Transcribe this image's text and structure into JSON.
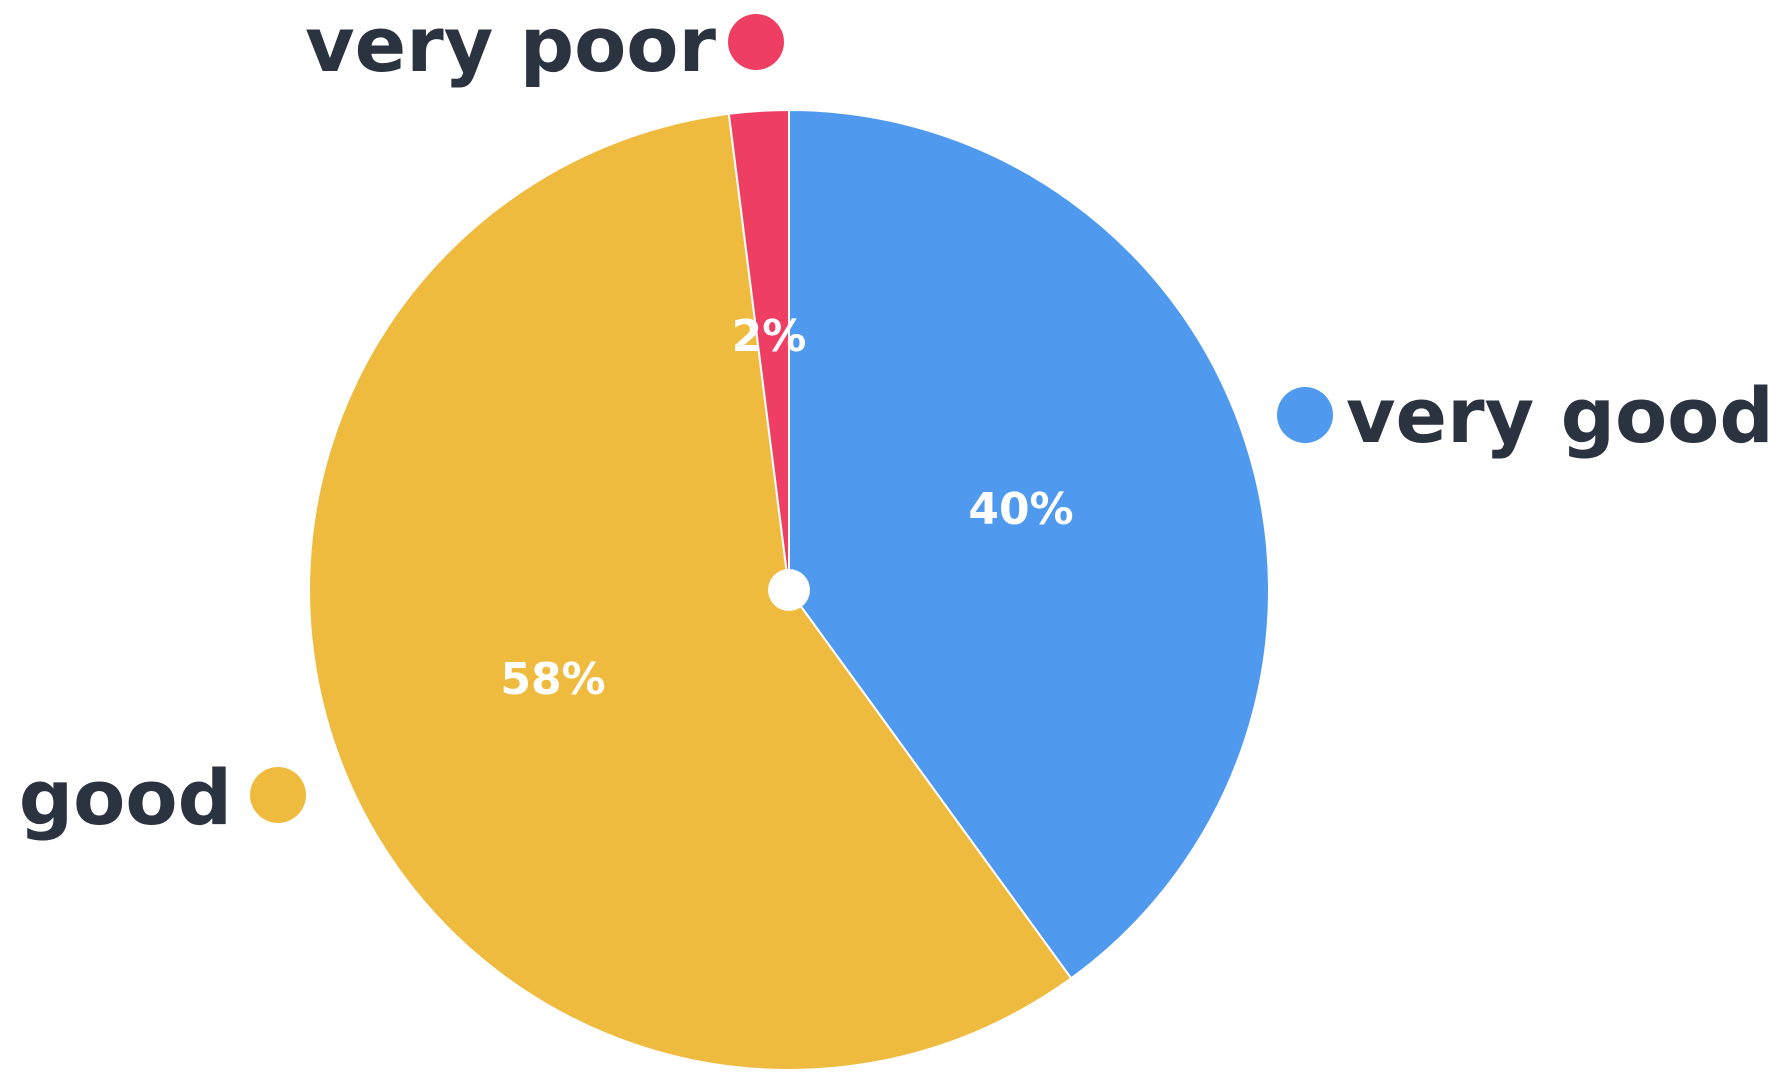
{
  "chart_data": {
    "type": "pie",
    "slices": [
      {
        "name": "very good",
        "value": 40,
        "label": "40%",
        "color": "#4f99ee"
      },
      {
        "name": "good",
        "value": 58,
        "label": "58%",
        "color": "#efbb3f"
      },
      {
        "name": "very poor",
        "value": 2,
        "label": "2%",
        "color": "#ef3e63"
      }
    ],
    "start_angle_deg": 0,
    "direction": "clockwise",
    "legend_placement": "around-pie"
  }
}
